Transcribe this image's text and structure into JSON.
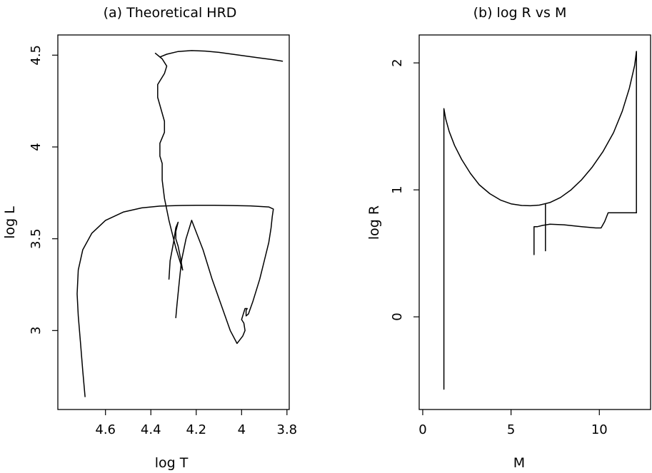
{
  "chart_data": [
    {
      "id": "hrd",
      "type": "line",
      "title": "(a) Theoretical HRD",
      "xlabel": "log T",
      "ylabel": "log L",
      "xlim": [
        4.81,
        3.79
      ],
      "ylim": [
        2.57,
        4.61
      ],
      "xticks": [
        4.6,
        4.4,
        4.2,
        4.0,
        3.8
      ],
      "xtick_labels": [
        "4.6",
        "4.4",
        "4.2",
        "4",
        "3.8"
      ],
      "yticks": [
        3.0,
        3.5,
        4.0,
        4.5
      ],
      "ytick_labels": [
        "3",
        "3.5",
        "4",
        "4.5"
      ],
      "grid": false,
      "series": [
        {
          "x": [
            4.69,
            4.7,
            4.71,
            4.72,
            4.725,
            4.72,
            4.7,
            4.66,
            4.6,
            4.52,
            4.44,
            4.36,
            4.28,
            4.2,
            4.12,
            4.04,
            3.96,
            3.88,
            3.86,
            3.865,
            3.87,
            3.88,
            3.9,
            3.92,
            3.95,
            3.97,
            3.98,
            3.98,
            3.975,
            3.985,
            4.0,
            3.99,
            3.985,
            3.995,
            4.02,
            4.05,
            4.09,
            4.13,
            4.17,
            4.22
          ],
          "y": [
            2.64,
            2.78,
            2.93,
            3.08,
            3.2,
            3.33,
            3.44,
            3.53,
            3.6,
            3.646,
            3.668,
            3.678,
            3.681,
            3.682,
            3.682,
            3.681,
            3.679,
            3.673,
            3.662,
            3.62,
            3.56,
            3.48,
            3.38,
            3.28,
            3.16,
            3.09,
            3.08,
            3.11,
            3.12,
            3.12,
            3.06,
            3.04,
            3.0,
            2.97,
            2.93,
            3.0,
            3.14,
            3.28,
            3.44,
            3.6
          ]
        },
        {
          "x": [
            4.22,
            4.245,
            4.265,
            4.275,
            4.285,
            4.29
          ],
          "y": [
            3.6,
            3.5,
            3.38,
            3.26,
            3.14,
            3.07
          ]
        },
        {
          "x": [
            4.26,
            4.27,
            4.28,
            4.29,
            4.29,
            4.28,
            4.29,
            4.3,
            4.315,
            4.32
          ],
          "y": [
            3.33,
            3.4,
            3.46,
            3.5,
            3.54,
            3.59,
            3.56,
            3.48,
            3.38,
            3.28
          ]
        },
        {
          "x": [
            4.26,
            4.29,
            4.32,
            4.34,
            4.35,
            4.35,
            4.36,
            4.36,
            4.34,
            4.34,
            4.37,
            4.37,
            4.34,
            4.33,
            4.35,
            4.38,
            4.36,
            4.33,
            4.28,
            4.22,
            4.16,
            4.1,
            4.04,
            3.98,
            3.92,
            3.86,
            3.82
          ],
          "y": [
            3.33,
            3.45,
            3.6,
            3.72,
            3.82,
            3.91,
            3.95,
            4.02,
            4.08,
            4.14,
            4.27,
            4.34,
            4.4,
            4.44,
            4.48,
            4.51,
            4.49,
            4.505,
            4.52,
            4.525,
            4.522,
            4.515,
            4.505,
            4.495,
            4.485,
            4.475,
            4.467
          ]
        }
      ]
    },
    {
      "id": "rm",
      "type": "line",
      "title": "(b) log R vs M",
      "xlabel": "M",
      "ylabel": "log R",
      "xlim": [
        -0.2,
        12.9
      ],
      "ylim": [
        -0.73,
        2.22
      ],
      "xticks": [
        0,
        5,
        10
      ],
      "xtick_labels": [
        "0",
        "5",
        "10"
      ],
      "yticks": [
        0,
        1,
        2
      ],
      "ytick_labels": [
        "0",
        "1",
        "2"
      ],
      "grid": false,
      "series": [
        {
          "x": [
            1.2,
            1.2,
            1.3,
            1.5,
            1.8,
            2.2,
            2.7,
            3.2,
            3.8,
            4.4,
            5.0,
            5.6,
            6.1,
            6.6,
            7.2,
            7.8,
            8.4,
            9.0,
            9.6,
            10.2,
            10.8,
            11.3,
            11.7,
            12.0,
            12.1
          ],
          "y": [
            -0.57,
            1.64,
            1.56,
            1.46,
            1.35,
            1.24,
            1.13,
            1.04,
            0.97,
            0.92,
            0.89,
            0.877,
            0.875,
            0.88,
            0.9,
            0.94,
            1.0,
            1.08,
            1.18,
            1.3,
            1.45,
            1.62,
            1.8,
            1.98,
            2.09
          ]
        },
        {
          "x": [
            12.1,
            12.1
          ],
          "y": [
            2.09,
            0.82
          ]
        },
        {
          "x": [
            6.95,
            6.95
          ],
          "y": [
            0.89,
            0.52
          ]
        },
        {
          "x": [
            6.3,
            6.3,
            6.5,
            6.8,
            7.2,
            8.0,
            9.0,
            9.8,
            10.1,
            10.3,
            10.5,
            10.8,
            11.2,
            11.6,
            12.1
          ],
          "y": [
            0.49,
            0.71,
            0.71,
            0.72,
            0.73,
            0.725,
            0.71,
            0.7,
            0.7,
            0.75,
            0.82,
            0.82,
            0.82,
            0.82,
            0.82
          ]
        }
      ]
    }
  ]
}
